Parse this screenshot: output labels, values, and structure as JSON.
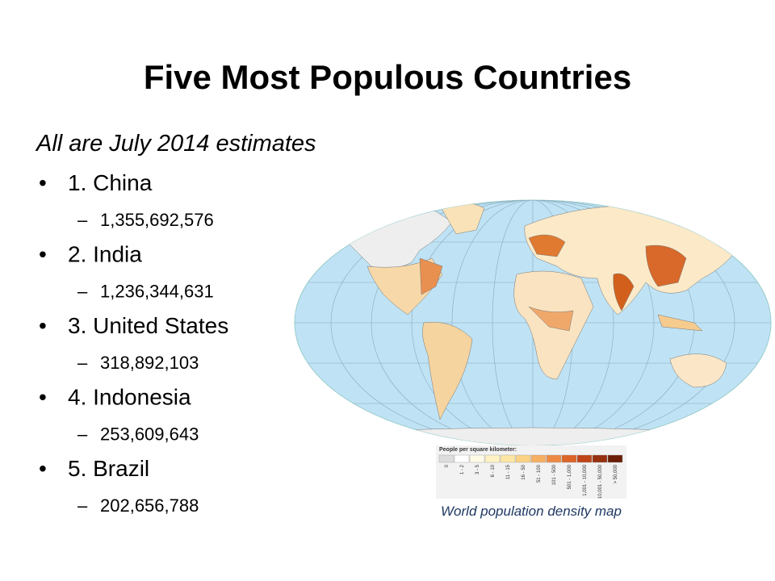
{
  "slide": {
    "title": "Five Most Populous Countries",
    "subtitle": "All are July 2014 estimates",
    "items": [
      {
        "label": "1. China",
        "value": "1,355,692,576"
      },
      {
        "label": "2. India",
        "value": "1,236,344,631"
      },
      {
        "label": "3. United States",
        "value": "318,892,103"
      },
      {
        "label": "4. Indonesia",
        "value": "253,609,643"
      },
      {
        "label": "5. Brazil",
        "value": "202,656,788"
      }
    ],
    "map": {
      "legend_title": "People per square kilometer:",
      "legend_labels": [
        "0",
        "1 - 2",
        "3 - 5",
        "6 - 10",
        "11 - 15",
        "16 - 50",
        "51 - 100",
        "101 - 500",
        "501 - 1,000",
        "1,001 - 10,000",
        "10,001 - 50,000",
        "> 50,000"
      ],
      "caption": "World population density map"
    }
  }
}
